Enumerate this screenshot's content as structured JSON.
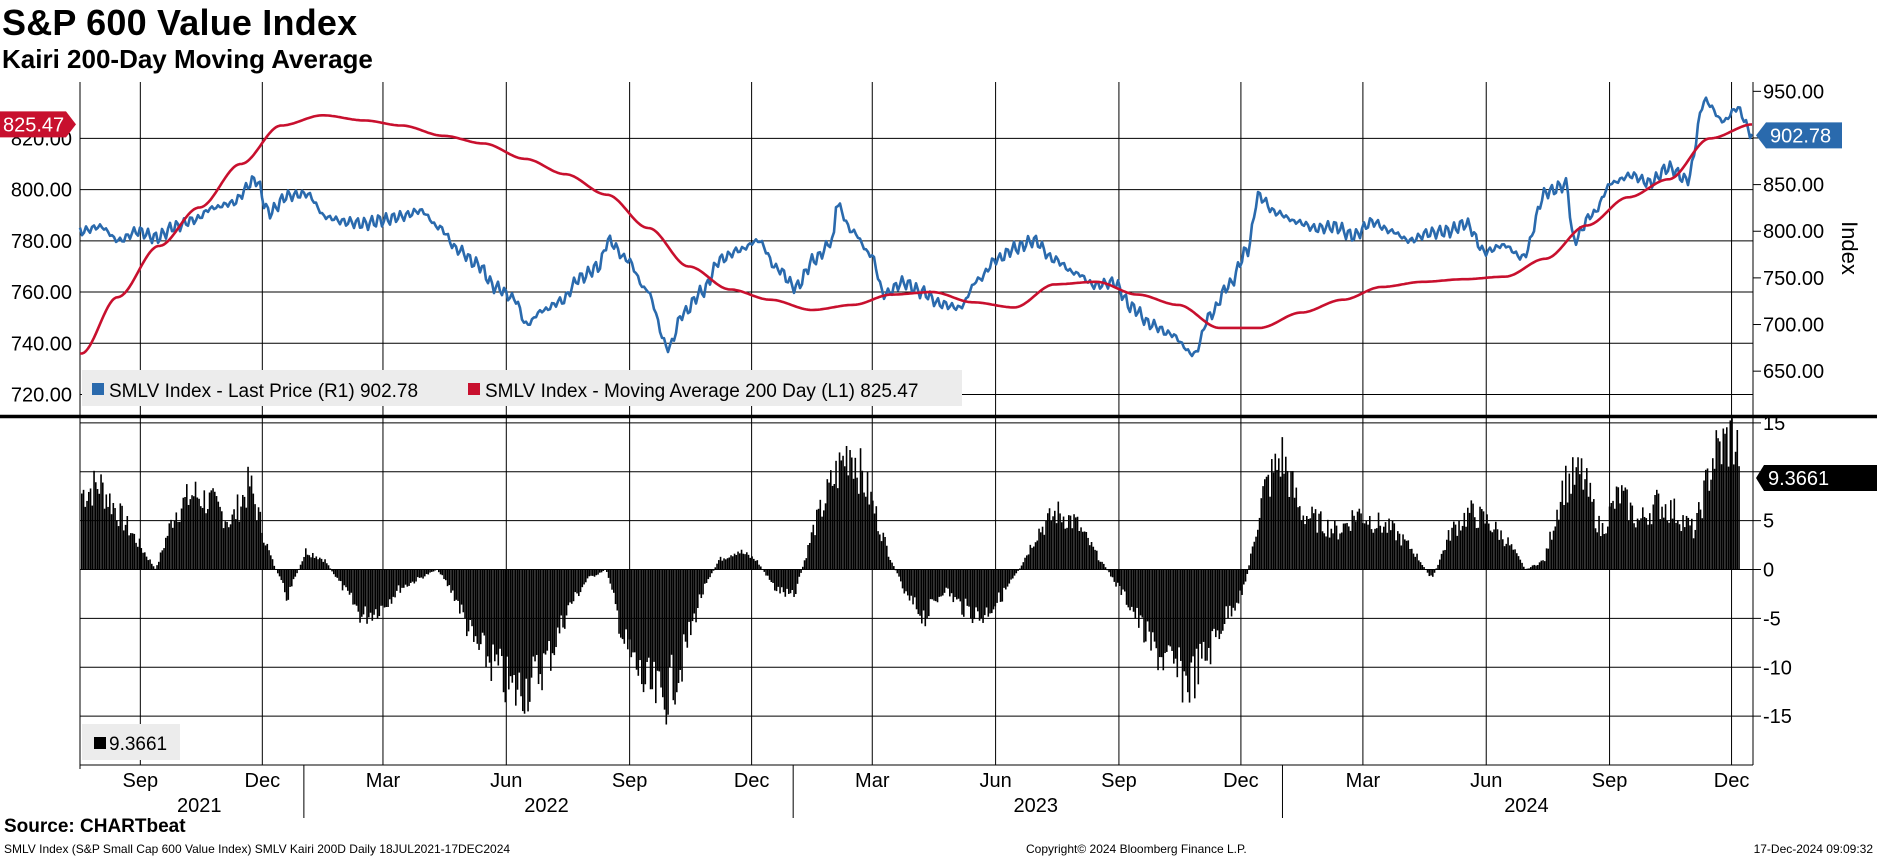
{
  "header": {
    "title": "S&P 600 Value Index",
    "subtitle": "Kairi 200-Day Moving Average"
  },
  "footer": {
    "source": "Source: CHARTbeat",
    "description": "SMLV Index (S&P Small Cap 600 Value Index) SMLV Kairi 200D  Daily 18JUL2021-17DEC2024",
    "copyright": "Copyright© 2024 Bloomberg Finance L.P.",
    "timestamp": "17-Dec-2024 09:09:32"
  },
  "colors": {
    "price": "#2a6aad",
    "ma": "#c8102e",
    "kairi": "#000000",
    "grid": "#000000"
  },
  "chart_data": [
    {
      "type": "line",
      "x_axis": {
        "months": [
          "Sep",
          "Dec",
          "Mar",
          "Jun",
          "Sep",
          "Dec",
          "Mar",
          "Jun",
          "Sep",
          "Dec",
          "Mar",
          "Jun",
          "Sep",
          "Dec"
        ],
        "month_dates": [
          "2021-09-01",
          "2021-12-01",
          "2022-03-01",
          "2022-06-01",
          "2022-09-01",
          "2022-12-01",
          "2023-03-01",
          "2023-06-01",
          "2023-09-01",
          "2023-12-01",
          "2024-03-01",
          "2024-06-01",
          "2024-09-01",
          "2024-12-01"
        ],
        "years": [
          "2021",
          "2022",
          "2023",
          "2024"
        ],
        "year_dates": [
          "2021-10-15",
          "2022-07-01",
          "2023-07-01",
          "2024-07-01"
        ],
        "range": [
          "2021-07-18",
          "2024-12-17"
        ]
      },
      "left_axis": {
        "ticks": [
          720,
          740,
          760,
          780,
          800,
          820
        ],
        "ylim": [
          712,
          842
        ]
      },
      "right_axis": {
        "label": "Index",
        "ticks": [
          650,
          700,
          750,
          800,
          850,
          900,
          950
        ],
        "ylim": [
          603,
          960
        ]
      },
      "series": [
        {
          "name": "SMLV Index - Last Price (R1)",
          "axis": "right",
          "last_value": 902.78,
          "last_label": "902.78",
          "x": [
            "2021-07-19",
            "2021-08-02",
            "2021-08-16",
            "2021-08-30",
            "2021-09-13",
            "2021-09-27",
            "2021-10-11",
            "2021-10-25",
            "2021-11-08",
            "2021-11-26",
            "2021-12-06",
            "2021-12-20",
            "2022-01-03",
            "2022-01-18",
            "2022-02-01",
            "2022-02-15",
            "2022-03-01",
            "2022-03-15",
            "2022-03-29",
            "2022-04-12",
            "2022-04-26",
            "2022-05-10",
            "2022-05-24",
            "2022-06-07",
            "2022-06-16",
            "2022-06-28",
            "2022-07-12",
            "2022-07-26",
            "2022-08-09",
            "2022-08-16",
            "2022-08-30",
            "2022-09-13",
            "2022-09-30",
            "2022-10-11",
            "2022-10-25",
            "2022-11-08",
            "2022-11-22",
            "2022-12-06",
            "2022-12-20",
            "2023-01-03",
            "2023-01-17",
            "2023-01-31",
            "2023-02-02",
            "2023-02-14",
            "2023-02-28",
            "2023-03-10",
            "2023-03-24",
            "2023-04-07",
            "2023-04-21",
            "2023-05-05",
            "2023-05-19",
            "2023-06-02",
            "2023-06-16",
            "2023-06-30",
            "2023-07-14",
            "2023-07-31",
            "2023-08-14",
            "2023-08-28",
            "2023-09-11",
            "2023-09-25",
            "2023-10-09",
            "2023-10-27",
            "2023-11-08",
            "2023-11-22",
            "2023-12-06",
            "2023-12-14",
            "2023-12-27",
            "2024-01-12",
            "2024-01-26",
            "2024-02-09",
            "2024-02-23",
            "2024-03-08",
            "2024-03-22",
            "2024-04-05",
            "2024-04-19",
            "2024-05-03",
            "2024-05-17",
            "2024-05-31",
            "2024-06-14",
            "2024-06-28",
            "2024-07-16",
            "2024-07-31",
            "2024-08-05",
            "2024-08-19",
            "2024-09-03",
            "2024-09-17",
            "2024-10-01",
            "2024-10-15",
            "2024-10-29",
            "2024-11-11",
            "2024-11-25",
            "2024-12-05",
            "2024-12-17"
          ],
          "values": [
            800,
            805,
            790,
            800,
            793,
            805,
            812,
            825,
            830,
            855,
            820,
            838,
            840,
            815,
            810,
            808,
            812,
            816,
            822,
            804,
            780,
            765,
            740,
            728,
            700,
            715,
            725,
            750,
            762,
            790,
            770,
            738,
            675,
            712,
            735,
            770,
            780,
            790,
            760,
            740,
            770,
            790,
            830,
            800,
            775,
            732,
            745,
            735,
            722,
            718,
            748,
            770,
            782,
            790,
            770,
            755,
            742,
            745,
            718,
            700,
            690,
            668,
            710,
            742,
            780,
            838,
            820,
            810,
            803,
            805,
            795,
            810,
            800,
            790,
            798,
            800,
            808,
            778,
            785,
            772,
            842,
            850,
            790,
            818,
            852,
            860,
            852,
            868,
            855,
            940,
            918,
            932,
            902.78
          ]
        },
        {
          "name": "SMLV Index - Moving Average 200 Day (L1)",
          "axis": "left",
          "last_value": 825.47,
          "last_label": "825.47",
          "x": [
            "2021-07-19",
            "2021-08-15",
            "2021-09-15",
            "2021-10-15",
            "2021-11-15",
            "2021-12-15",
            "2022-01-15",
            "2022-02-15",
            "2022-03-15",
            "2022-04-15",
            "2022-05-15",
            "2022-06-15",
            "2022-07-15",
            "2022-08-15",
            "2022-09-15",
            "2022-10-15",
            "2022-11-15",
            "2022-12-15",
            "2023-01-15",
            "2023-02-15",
            "2023-03-15",
            "2023-04-15",
            "2023-05-15",
            "2023-06-15",
            "2023-07-15",
            "2023-08-15",
            "2023-09-15",
            "2023-10-15",
            "2023-11-15",
            "2023-12-15",
            "2024-01-15",
            "2024-02-15",
            "2024-03-15",
            "2024-04-15",
            "2024-05-15",
            "2024-06-15",
            "2024-07-15",
            "2024-08-15",
            "2024-09-15",
            "2024-10-15",
            "2024-11-15",
            "2024-12-17"
          ],
          "values": [
            736,
            758,
            778,
            793,
            810,
            825,
            829,
            827,
            825,
            821,
            818,
            812,
            806,
            798,
            785,
            770,
            761,
            757,
            753,
            755,
            759,
            760,
            756,
            754,
            763,
            764,
            759,
            755,
            746,
            746,
            752,
            757,
            762,
            764,
            765,
            766,
            773,
            786,
            797,
            804,
            820,
            825.47
          ]
        }
      ]
    },
    {
      "type": "bar",
      "y_axis": {
        "ticks": [
          15,
          10,
          5,
          0,
          -5,
          -10,
          -15
        ],
        "ylim": [
          -20,
          15.5
        ]
      },
      "series": [
        {
          "name": "SMLV Kairi 200D",
          "last_value": 9.3661,
          "last_label": "9.3661",
          "x": [
            "2021-07-18",
            "2021-08-01",
            "2021-08-15",
            "2021-08-29",
            "2021-09-12",
            "2021-09-26",
            "2021-10-10",
            "2021-10-24",
            "2021-11-07",
            "2021-11-21",
            "2021-12-05",
            "2021-12-19",
            "2022-01-02",
            "2022-01-16",
            "2022-01-30",
            "2022-02-13",
            "2022-02-27",
            "2022-03-13",
            "2022-03-27",
            "2022-04-10",
            "2022-04-24",
            "2022-05-08",
            "2022-05-22",
            "2022-06-05",
            "2022-06-19",
            "2022-07-03",
            "2022-07-17",
            "2022-07-31",
            "2022-08-14",
            "2022-08-28",
            "2022-09-11",
            "2022-09-25",
            "2022-10-09",
            "2022-10-23",
            "2022-11-06",
            "2022-11-20",
            "2022-12-04",
            "2022-12-18",
            "2023-01-01",
            "2023-01-15",
            "2023-01-29",
            "2023-02-12",
            "2023-02-26",
            "2023-03-12",
            "2023-03-26",
            "2023-04-09",
            "2023-04-23",
            "2023-05-07",
            "2023-05-21",
            "2023-06-04",
            "2023-06-18",
            "2023-07-02",
            "2023-07-16",
            "2023-07-30",
            "2023-08-13",
            "2023-08-27",
            "2023-09-10",
            "2023-09-24",
            "2023-10-08",
            "2023-10-22",
            "2023-11-05",
            "2023-11-19",
            "2023-12-03",
            "2023-12-17",
            "2023-12-31",
            "2024-01-14",
            "2024-01-28",
            "2024-02-11",
            "2024-02-25",
            "2024-03-10",
            "2024-03-24",
            "2024-04-07",
            "2024-04-21",
            "2024-05-05",
            "2024-05-19",
            "2024-06-02",
            "2024-06-16",
            "2024-06-30",
            "2024-07-14",
            "2024-07-28",
            "2024-08-11",
            "2024-08-25",
            "2024-09-08",
            "2024-09-22",
            "2024-10-06",
            "2024-10-20",
            "2024-11-03",
            "2024-11-17",
            "2024-12-01",
            "2024-12-15"
          ],
          "values": [
            8,
            9,
            6,
            3,
            0,
            6,
            8,
            7,
            5,
            9,
            2,
            -3,
            2,
            1,
            -2,
            -5,
            -4,
            -2,
            -1,
            0,
            -3,
            -8,
            -10,
            -13,
            -12,
            -9,
            -4,
            -1,
            0,
            -8,
            -12,
            -14,
            -10,
            -3,
            1,
            2,
            1,
            -2,
            -3,
            4,
            9,
            13,
            8,
            2,
            -3,
            -5,
            -2,
            -4,
            -5,
            -3,
            0,
            4,
            6,
            5,
            2,
            -1,
            -4,
            -8,
            -10,
            -12,
            -9,
            -5,
            -2,
            8,
            12,
            6,
            5,
            4,
            6,
            5,
            4,
            2,
            -1,
            4,
            6,
            5,
            3,
            0,
            1,
            9,
            10,
            4,
            8,
            5,
            7,
            6,
            4,
            12,
            14,
            9.3661
          ]
        }
      ]
    }
  ]
}
